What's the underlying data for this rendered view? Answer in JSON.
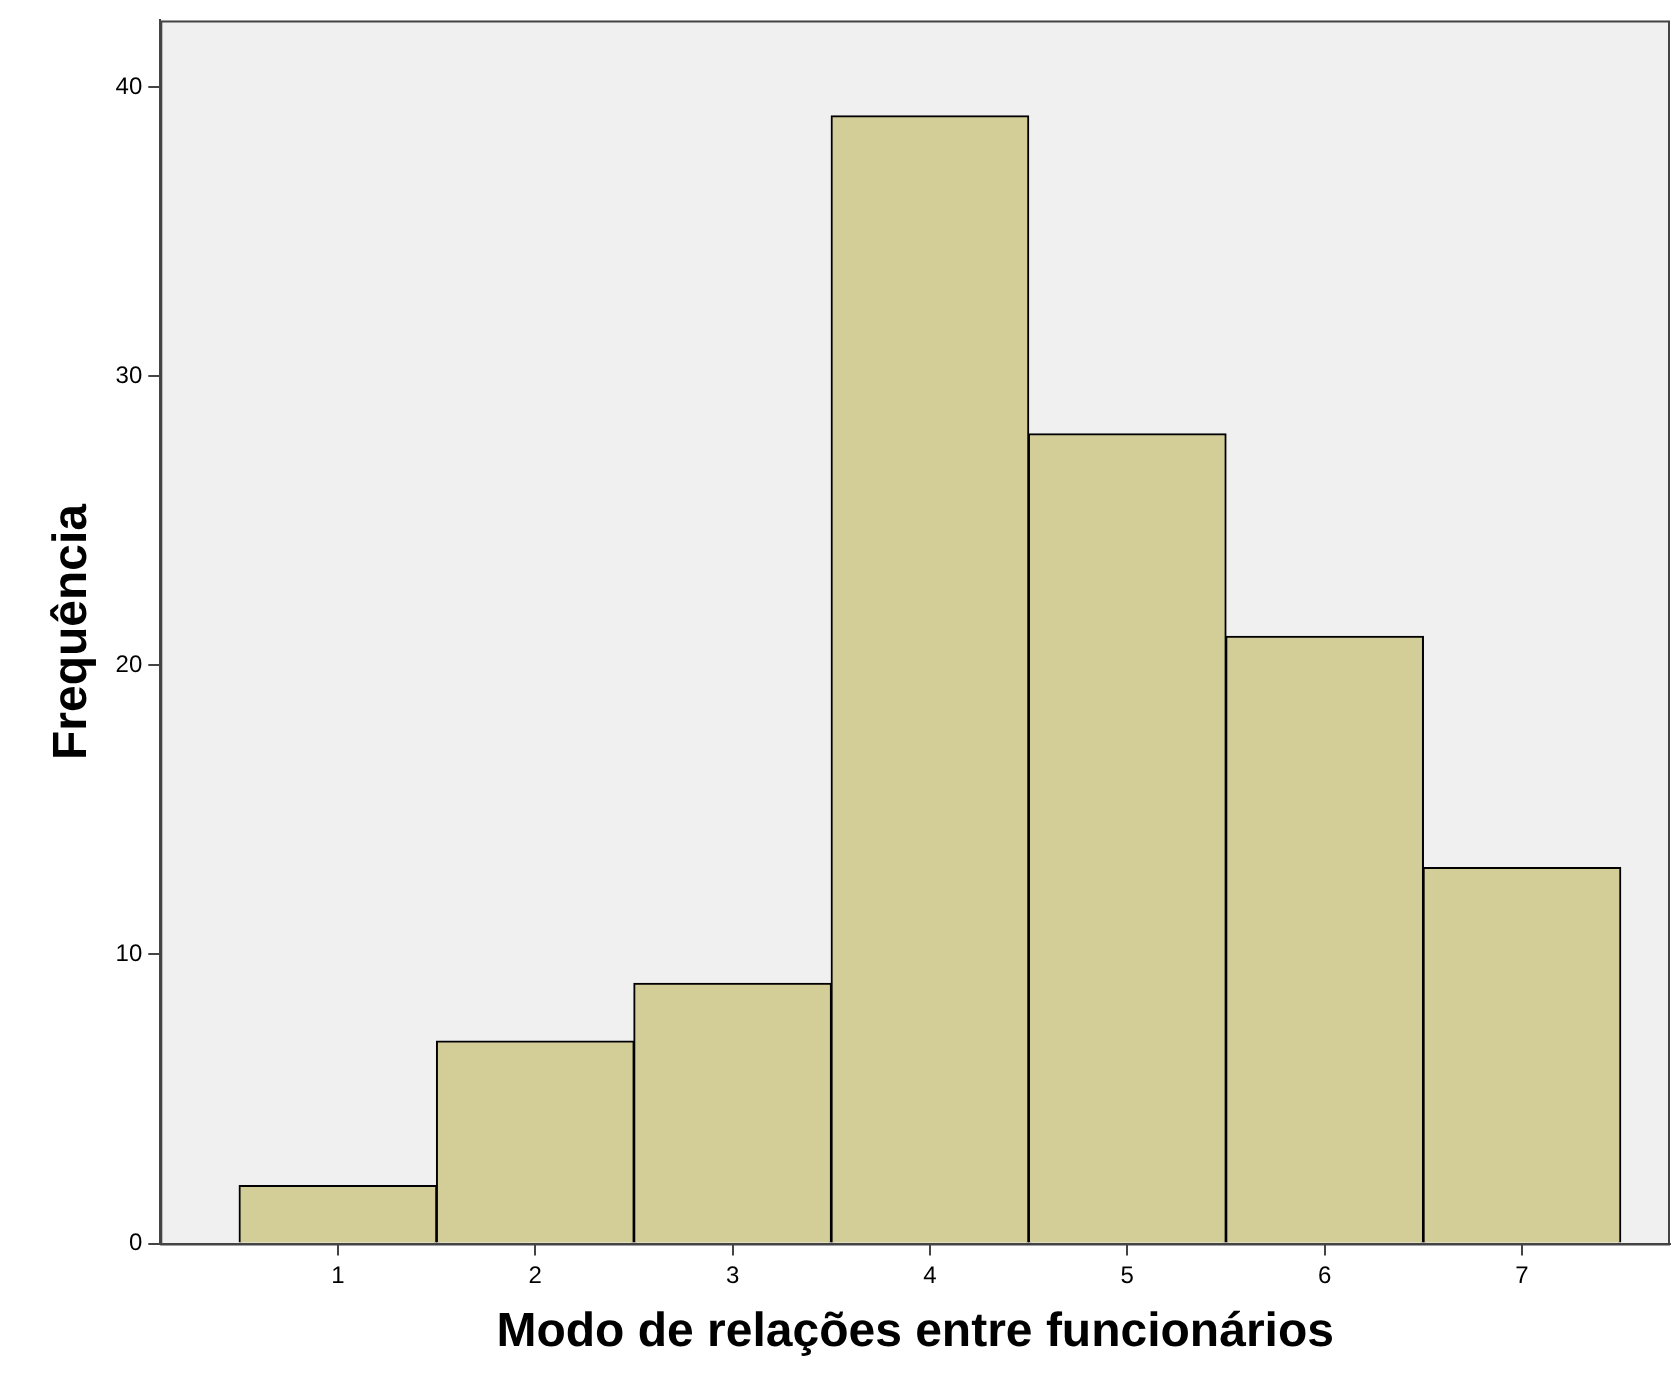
{
  "chart_data": {
    "type": "histogram",
    "xlabel": "Modo de relações entre funcionários",
    "ylabel": "Frequência",
    "bins": [
      0.5,
      1.5,
      2.5,
      3.5,
      4.5,
      5.5,
      6.5,
      7.5
    ],
    "values": [
      2,
      7,
      9,
      39,
      28,
      21,
      13
    ],
    "color": "#d3ce97",
    "xlim": [
      0.1,
      7.75
    ],
    "xticks": [
      1,
      2,
      3,
      4,
      5,
      6,
      7
    ],
    "ylim": [
      0,
      42.3
    ],
    "yticks": [
      0,
      10,
      20,
      30,
      40
    ],
    "grid": false,
    "legend": false
  }
}
